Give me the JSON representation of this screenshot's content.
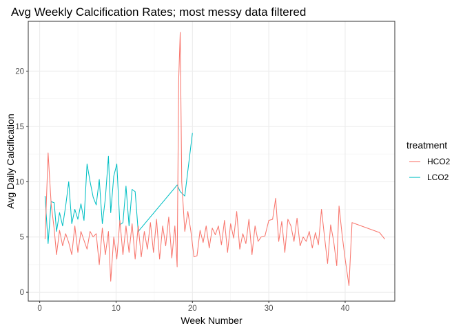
{
  "chart_data": {
    "type": "line",
    "title": "Avg Weekly Calcification Rates; most messy data filtered",
    "xlabel": "Week Number",
    "ylabel": "Avg Daily Calcification",
    "xlim": [
      -1.5,
      46.5
    ],
    "ylim": [
      -0.8,
      24.5
    ],
    "x_ticks": [
      0,
      10,
      20,
      30,
      40
    ],
    "y_ticks": [
      0,
      5,
      10,
      15,
      20
    ],
    "grid": true,
    "legend": {
      "title": "treatment",
      "position": "right"
    },
    "series": [
      {
        "name": "HCO2",
        "color": "#f8766d",
        "points": [
          [
            0.7,
            4.8
          ],
          [
            1.1,
            12.6
          ],
          [
            1.5,
            8.0
          ],
          [
            1.9,
            5.7
          ],
          [
            2.2,
            3.4
          ],
          [
            2.6,
            5.6
          ],
          [
            3.0,
            4.2
          ],
          [
            3.4,
            5.3
          ],
          [
            3.8,
            4.5
          ],
          [
            4.2,
            3.4
          ],
          [
            4.6,
            6.0
          ],
          [
            5.0,
            3.6
          ],
          [
            5.4,
            5.5
          ],
          [
            5.8,
            4.7
          ],
          [
            6.2,
            3.9
          ],
          [
            6.6,
            5.5
          ],
          [
            7.0,
            5.0
          ],
          [
            7.4,
            5.3
          ],
          [
            7.8,
            2.5
          ],
          [
            8.2,
            5.8
          ],
          [
            8.6,
            3.4
          ],
          [
            9.0,
            5.5
          ],
          [
            9.3,
            1.0
          ],
          [
            9.7,
            5.0
          ],
          [
            10.1,
            3.0
          ],
          [
            10.5,
            6.5
          ],
          [
            10.9,
            3.4
          ],
          [
            11.3,
            6.0
          ],
          [
            11.7,
            3.6
          ],
          [
            12.1,
            6.2
          ],
          [
            12.5,
            3.0
          ],
          [
            12.9,
            6.0
          ],
          [
            13.3,
            3.2
          ],
          [
            13.7,
            5.5
          ],
          [
            14.1,
            3.9
          ],
          [
            14.5,
            6.3
          ],
          [
            14.9,
            3.6
          ],
          [
            15.3,
            6.6
          ],
          [
            15.7,
            3.0
          ],
          [
            16.1,
            6.0
          ],
          [
            16.5,
            4.2
          ],
          [
            16.9,
            6.8
          ],
          [
            17.3,
            3.1
          ],
          [
            17.7,
            6.0
          ],
          [
            18.0,
            2.3
          ],
          [
            18.2,
            19.2
          ],
          [
            18.4,
            23.5
          ],
          [
            18.6,
            10.0
          ],
          [
            19.0,
            5.5
          ],
          [
            19.4,
            7.3
          ],
          [
            19.8,
            5.5
          ],
          [
            20.2,
            3.2
          ],
          [
            20.6,
            3.3
          ],
          [
            21.0,
            5.6
          ],
          [
            21.4,
            4.5
          ],
          [
            21.8,
            6.0
          ],
          [
            22.2,
            4.0
          ],
          [
            22.6,
            5.8
          ],
          [
            23.0,
            5.2
          ],
          [
            23.4,
            6.0
          ],
          [
            23.8,
            4.3
          ],
          [
            24.2,
            6.5
          ],
          [
            24.6,
            3.6
          ],
          [
            25.0,
            6.2
          ],
          [
            25.4,
            4.9
          ],
          [
            25.8,
            7.3
          ],
          [
            26.2,
            3.9
          ],
          [
            26.6,
            5.3
          ],
          [
            27.0,
            4.4
          ],
          [
            27.4,
            6.6
          ],
          [
            27.8,
            3.4
          ],
          [
            28.2,
            6.0
          ],
          [
            28.6,
            4.6
          ],
          [
            29.0,
            5.0
          ],
          [
            29.5,
            5.1
          ],
          [
            30.0,
            6.5
          ],
          [
            30.5,
            6.6
          ],
          [
            30.9,
            8.5
          ],
          [
            31.3,
            4.6
          ],
          [
            31.7,
            6.4
          ],
          [
            32.1,
            3.6
          ],
          [
            32.5,
            6.6
          ],
          [
            32.9,
            6.0
          ],
          [
            33.3,
            4.6
          ],
          [
            33.7,
            6.7
          ],
          [
            34.1,
            4.2
          ],
          [
            34.5,
            5.0
          ],
          [
            34.9,
            4.6
          ],
          [
            35.3,
            5.5
          ],
          [
            35.7,
            4.0
          ],
          [
            36.1,
            5.4
          ],
          [
            36.5,
            4.3
          ],
          [
            36.9,
            7.5
          ],
          [
            37.3,
            5.0
          ],
          [
            37.7,
            2.6
          ],
          [
            38.1,
            6.1
          ],
          [
            38.5,
            4.6
          ],
          [
            38.9,
            2.4
          ],
          [
            39.2,
            7.8
          ],
          [
            39.6,
            5.2
          ],
          [
            40.0,
            3.0
          ],
          [
            40.5,
            0.6
          ],
          [
            40.9,
            6.3
          ],
          [
            44.5,
            5.4
          ],
          [
            45.2,
            4.8
          ]
        ]
      },
      {
        "name": "LCO2",
        "color": "#00bfc4",
        "points": [
          [
            0.7,
            8.7
          ],
          [
            1.1,
            4.4
          ],
          [
            1.5,
            8.2
          ],
          [
            1.9,
            8.1
          ],
          [
            2.2,
            5.5
          ],
          [
            2.6,
            7.2
          ],
          [
            3.0,
            6.0
          ],
          [
            3.4,
            7.8
          ],
          [
            3.8,
            10.0
          ],
          [
            4.2,
            6.2
          ],
          [
            4.6,
            7.5
          ],
          [
            5.0,
            6.6
          ],
          [
            5.4,
            8.0
          ],
          [
            5.8,
            6.5
          ],
          [
            6.2,
            11.6
          ],
          [
            6.6,
            10.0
          ],
          [
            7.0,
            8.6
          ],
          [
            7.4,
            7.9
          ],
          [
            7.8,
            10.2
          ],
          [
            8.2,
            6.2
          ],
          [
            8.6,
            8.5
          ],
          [
            9.0,
            12.3
          ],
          [
            9.3,
            7.2
          ],
          [
            9.7,
            10.5
          ],
          [
            10.1,
            11.6
          ],
          [
            10.5,
            6.1
          ],
          [
            10.9,
            6.3
          ],
          [
            11.3,
            9.6
          ],
          [
            11.7,
            6.0
          ],
          [
            12.1,
            9.3
          ],
          [
            12.5,
            9.1
          ],
          [
            12.9,
            5.5
          ],
          [
            18.0,
            9.7
          ],
          [
            18.4,
            9.1
          ],
          [
            19.0,
            8.7
          ],
          [
            20.0,
            14.4
          ]
        ]
      }
    ]
  }
}
